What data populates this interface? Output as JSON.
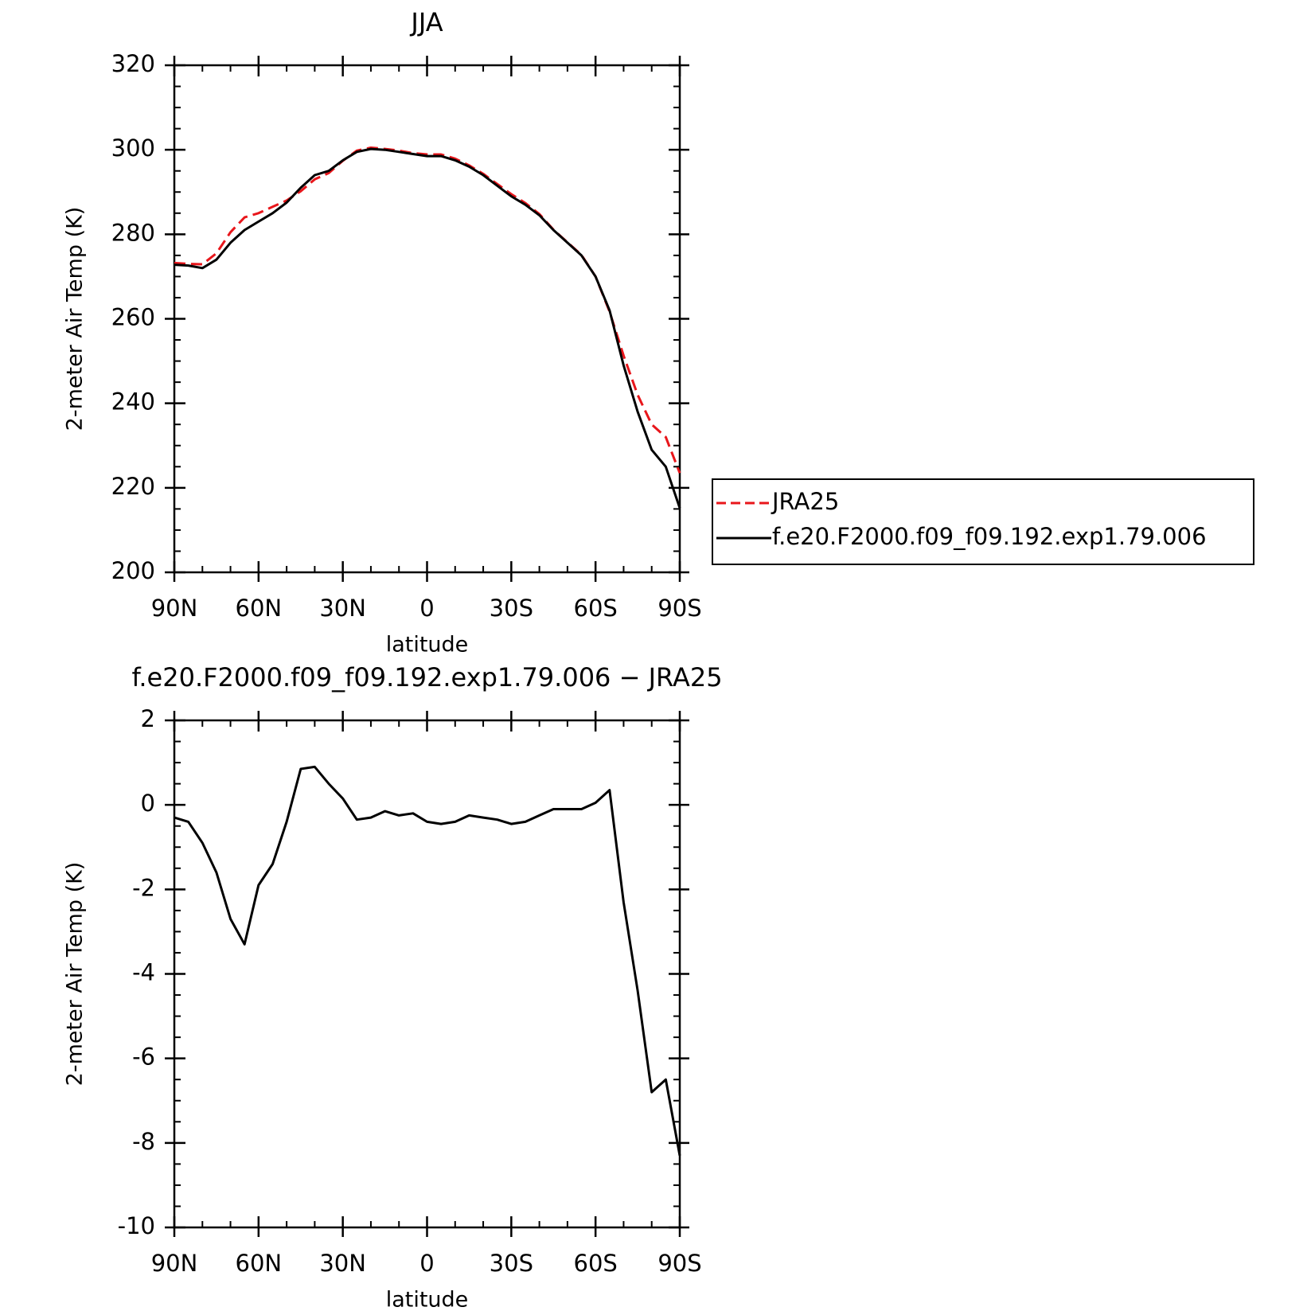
{
  "chart_data": [
    {
      "type": "line",
      "title": "JJA",
      "x_label": "latitude",
      "y_label": "2-meter Air Temp (K)",
      "x": [
        90,
        85,
        80,
        75,
        70,
        65,
        60,
        55,
        50,
        45,
        40,
        35,
        30,
        25,
        20,
        15,
        10,
        5,
        0,
        -5,
        -10,
        -15,
        -20,
        -25,
        -30,
        -35,
        -40,
        -45,
        -50,
        -55,
        -60,
        -65,
        -70,
        -75,
        -80,
        -85,
        -90
      ],
      "series": [
        {
          "name": "JRA25",
          "color": "#e8161b",
          "dashed": true,
          "values": [
            273.2,
            273,
            272.9,
            275.5,
            280.5,
            284,
            285,
            286.5,
            288,
            290.2,
            293,
            294.5,
            297.4,
            299.8,
            300.5,
            300.2,
            299.8,
            299.2,
            298.9,
            298.9,
            297.9,
            296.3,
            294.3,
            291.9,
            289.5,
            287.4,
            284.8,
            281.1,
            278.1,
            275.1,
            270,
            261.7,
            251.3,
            242,
            235,
            232,
            223.5
          ]
        },
        {
          "name": "f.e20.F2000.f09_f09.192.exp1.79.006",
          "color": "#000000",
          "dashed": false,
          "values": [
            272.8,
            272.6,
            272,
            274,
            278,
            281,
            283,
            285,
            287.5,
            291,
            294,
            295,
            297.5,
            299.5,
            300.2,
            300,
            299.5,
            299,
            298.5,
            298.5,
            297.5,
            296,
            294,
            291.5,
            289,
            287,
            284.5,
            281,
            278,
            275,
            270,
            262,
            249,
            238,
            229,
            225,
            215.2
          ]
        }
      ],
      "xlim": [
        90,
        -90
      ],
      "xticks": [
        {
          "value": 90,
          "label": "90N"
        },
        {
          "value": 60,
          "label": "60N"
        },
        {
          "value": 30,
          "label": "30N"
        },
        0,
        {
          "value": -30,
          "label": "30S"
        },
        {
          "value": -60,
          "label": "60S"
        },
        {
          "value": -90,
          "label": "90S"
        }
      ],
      "ylim": [
        200,
        320
      ],
      "yticks": [
        200,
        220,
        240,
        260,
        280,
        300,
        320
      ],
      "legend": "right"
    },
    {
      "type": "line",
      "title": "f.e20.F2000.f09_f09.192.exp1.79.006 − JRA25",
      "x_label": "latitude",
      "y_label": "2-meter Air Temp (K)",
      "x": [
        90,
        85,
        80,
        75,
        70,
        65,
        60,
        55,
        50,
        45,
        40,
        35,
        30,
        25,
        20,
        15,
        10,
        5,
        0,
        -5,
        -10,
        -15,
        -20,
        -25,
        -30,
        -35,
        -40,
        -45,
        -50,
        -55,
        -60,
        -65,
        -70,
        -75,
        -80,
        -85,
        -90
      ],
      "color": "#000000",
      "values": [
        -0.3,
        -0.4,
        -0.9,
        -1.6,
        -2.7,
        -3.3,
        -1.9,
        -1.4,
        -0.4,
        0.85,
        0.9,
        0.5,
        0.15,
        -0.35,
        -0.3,
        -0.15,
        -0.25,
        -0.2,
        -0.4,
        -0.45,
        -0.4,
        -0.25,
        -0.3,
        -0.35,
        -0.45,
        -0.4,
        -0.25,
        -0.1,
        -0.1,
        -0.1,
        0.05,
        0.35,
        -2.3,
        -4.4,
        -6.8,
        -6.5,
        -8.3
      ],
      "xlim": [
        90,
        -90
      ],
      "xticks": [
        {
          "value": 90,
          "label": "90N"
        },
        {
          "value": 60,
          "label": "60N"
        },
        {
          "value": 30,
          "label": "30N"
        },
        0,
        {
          "value": -30,
          "label": "30S"
        },
        {
          "value": -60,
          "label": "60S"
        },
        {
          "value": -90,
          "label": "90S"
        }
      ],
      "ylim": [
        -10,
        2
      ],
      "yticks": [
        -10,
        -8,
        -6,
        -4,
        -2,
        0,
        2
      ]
    }
  ]
}
